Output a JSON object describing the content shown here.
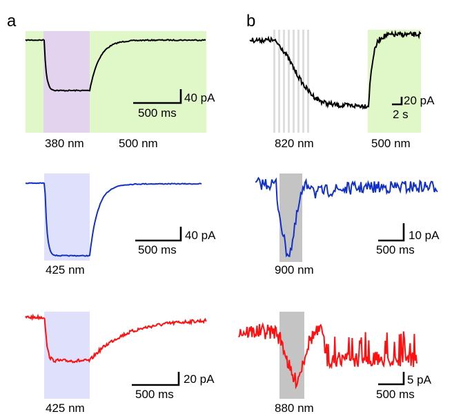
{
  "panels": {
    "a": "a",
    "b": "b"
  },
  "colors": {
    "visible_bg": "#e0f7c8",
    "uv_violet": "#e3d3ef",
    "blue_light": "#dfe0fb",
    "ir_gray": "#c4c4c4",
    "ir_stripes": "#dedede",
    "trace_black": "#000000",
    "trace_blue": "#1030c8",
    "trace_red": "#ff1010"
  },
  "wavelength_labels": {
    "a_row1_left": "380 nm",
    "a_row1_right": "500 nm",
    "a_row2": "425 nm",
    "a_row3": "425 nm",
    "b_row1_left": "820 nm",
    "b_row1_right": "500 nm",
    "b_row2": "900 nm",
    "b_row3": "880 nm"
  },
  "scale_bars": {
    "a_row1": {
      "amplitude": "40 pA",
      "time": "500 ms"
    },
    "a_row2": {
      "amplitude": "40 pA",
      "time": "500 ms"
    },
    "a_row3": {
      "amplitude": "20 pA",
      "time": "500 ms"
    },
    "b_row1": {
      "amplitude": "20 pA",
      "time": "2 s"
    },
    "b_row2": {
      "amplitude": "10 pA",
      "time": "500 ms"
    },
    "b_row3": {
      "amplitude": "5 pA",
      "time": "500 ms"
    }
  }
}
